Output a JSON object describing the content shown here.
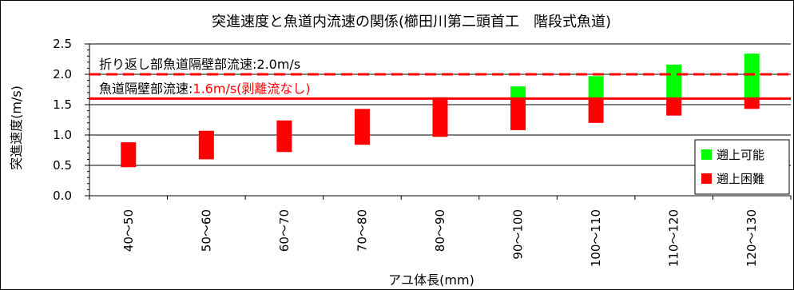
{
  "chart_data": {
    "type": "bar",
    "title": "突進速度と魚道内流速の関係(櫛田川第二頭首工　階段式魚道)",
    "xlabel": "アユ体長(mm)",
    "ylabel": "突進速度(m/s)",
    "ylim": [
      0,
      2.5
    ],
    "yticks": [
      "0.0",
      "0.5",
      "1.0",
      "1.5",
      "2.0",
      "2.5"
    ],
    "categories": [
      "40～50",
      "50～60",
      "60～70",
      "70～80",
      "80～90",
      "90～100",
      "100～110",
      "110～120",
      "120～130"
    ],
    "series": [
      {
        "name": "遡上困難",
        "color": "#ff0000",
        "ranges": [
          [
            0.47,
            0.88
          ],
          [
            0.6,
            1.07
          ],
          [
            0.72,
            1.24
          ],
          [
            0.84,
            1.43
          ],
          [
            0.97,
            1.62
          ],
          [
            1.08,
            1.6
          ],
          [
            1.2,
            1.6
          ],
          [
            1.32,
            1.6
          ],
          [
            1.43,
            1.6
          ]
        ]
      },
      {
        "name": "遡上可能",
        "color": "#00ff00",
        "ranges": [
          null,
          null,
          null,
          null,
          null,
          [
            1.6,
            1.8
          ],
          [
            1.6,
            1.97
          ],
          [
            1.6,
            2.16
          ],
          [
            1.6,
            2.34
          ]
        ]
      }
    ],
    "reference_lines": [
      {
        "value": 2.0,
        "style": "dashed",
        "color": "#ff0000",
        "label_black": "折り返し部魚道隔壁部流速:2.0m/s",
        "label_red": ""
      },
      {
        "value": 1.6,
        "style": "solid",
        "color": "#ff0000",
        "label_black": "魚道隔壁部流速:",
        "label_red": "1.6m/s(剥離流なし)"
      }
    ],
    "grid": true,
    "legend_position": "bottom-right"
  }
}
